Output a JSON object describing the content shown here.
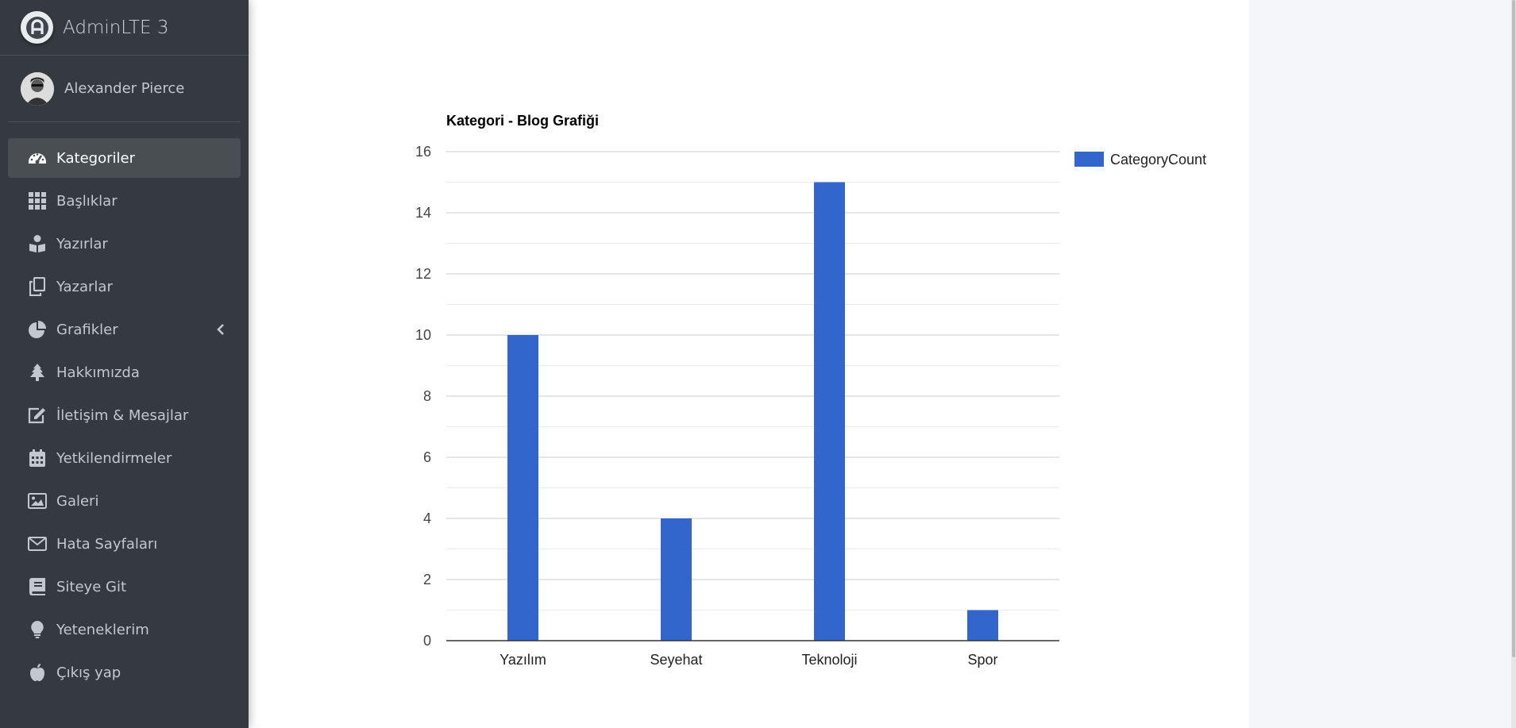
{
  "brand": {
    "title": "AdminLTE 3",
    "logo_icon": "adminlte-logo-icon"
  },
  "user": {
    "name": "Alexander Pierce"
  },
  "sidebar": {
    "items": [
      {
        "label": "Kategoriler",
        "icon": "tachometer-icon",
        "active": true
      },
      {
        "label": "Başlıklar",
        "icon": "grid-icon"
      },
      {
        "label": "Yazırlar",
        "icon": "book-reader-icon"
      },
      {
        "label": "Yazarlar",
        "icon": "copy-icon"
      },
      {
        "label": "Grafikler",
        "icon": "pie-chart-icon",
        "has_arrow": true
      },
      {
        "label": "Hakkımızda",
        "icon": "tree-icon"
      },
      {
        "label": "İletişim & Mesajlar",
        "icon": "edit-icon"
      },
      {
        "label": "Yetkilendirmeler",
        "icon": "calendar-icon"
      },
      {
        "label": "Galeri",
        "icon": "image-icon"
      },
      {
        "label": "Hata Sayfaları",
        "icon": "envelope-icon"
      },
      {
        "label": "Siteye Git",
        "icon": "book-icon"
      },
      {
        "label": "Yeteneklerim",
        "icon": "lightbulb-icon"
      },
      {
        "label": "Çıkış yap",
        "icon": "apple-icon"
      }
    ]
  },
  "colors": {
    "sidebar_bg": "#343a40",
    "bar": "#3366cc",
    "active_item": "#494e53"
  },
  "chart_data": {
    "type": "bar",
    "title": "Kategori - Blog Grafiği",
    "categories": [
      "Yazılım",
      "Seyehat",
      "Teknoloji",
      "Spor"
    ],
    "series": [
      {
        "name": "CategoryCount",
        "values": [
          10,
          4,
          15,
          1
        ]
      }
    ],
    "ylim": [
      0,
      16
    ],
    "yticks": [
      0,
      2,
      4,
      6,
      8,
      10,
      12,
      14,
      16
    ],
    "grid": true,
    "legend": "right"
  }
}
